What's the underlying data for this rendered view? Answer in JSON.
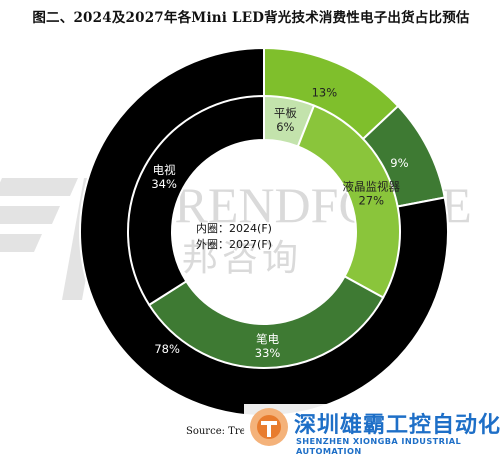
{
  "title": "图二、2024及2027年各Mini LED背光技术消费性电子出货占比预估",
  "chart_data": {
    "type": "donut",
    "legend": {
      "inner": "内圈：2024(F)",
      "outer": "外圈：2027(F)"
    },
    "rings": [
      {
        "ring": "inner",
        "year": "2024(F)",
        "slices": [
          {
            "label": "平板",
            "value": 6,
            "value_text": "6%",
            "color": "#c3e3ac"
          },
          {
            "label": "液晶监视器",
            "value": 27,
            "value_text": "27%",
            "color": "#8ac53b"
          },
          {
            "label": "笔电",
            "value": 33,
            "value_text": "33%",
            "color": "#3e7a33"
          },
          {
            "label": "电视",
            "value": 34,
            "value_text": "34%",
            "color": "#000000"
          }
        ]
      },
      {
        "ring": "outer",
        "year": "2027(F)",
        "slices": [
          {
            "label": "",
            "value": 13,
            "value_text": "13%",
            "color": "#7fbf2c"
          },
          {
            "label": "",
            "value": 9,
            "value_text": "9%",
            "color": "#3e7a33"
          },
          {
            "label": "",
            "value": 78,
            "value_text": "78%",
            "color": "#000000"
          }
        ]
      }
    ]
  },
  "watermark": {
    "brand_en": "TRENDFORCE",
    "brand_cn": "集邦咨询"
  },
  "source_text": "Source: Tre",
  "stamp": {
    "company_cn": "深圳雄霸工控自动化",
    "company_en": "SHENZHEN XIONGBA INDUSTRIAL AUTOMATION"
  }
}
